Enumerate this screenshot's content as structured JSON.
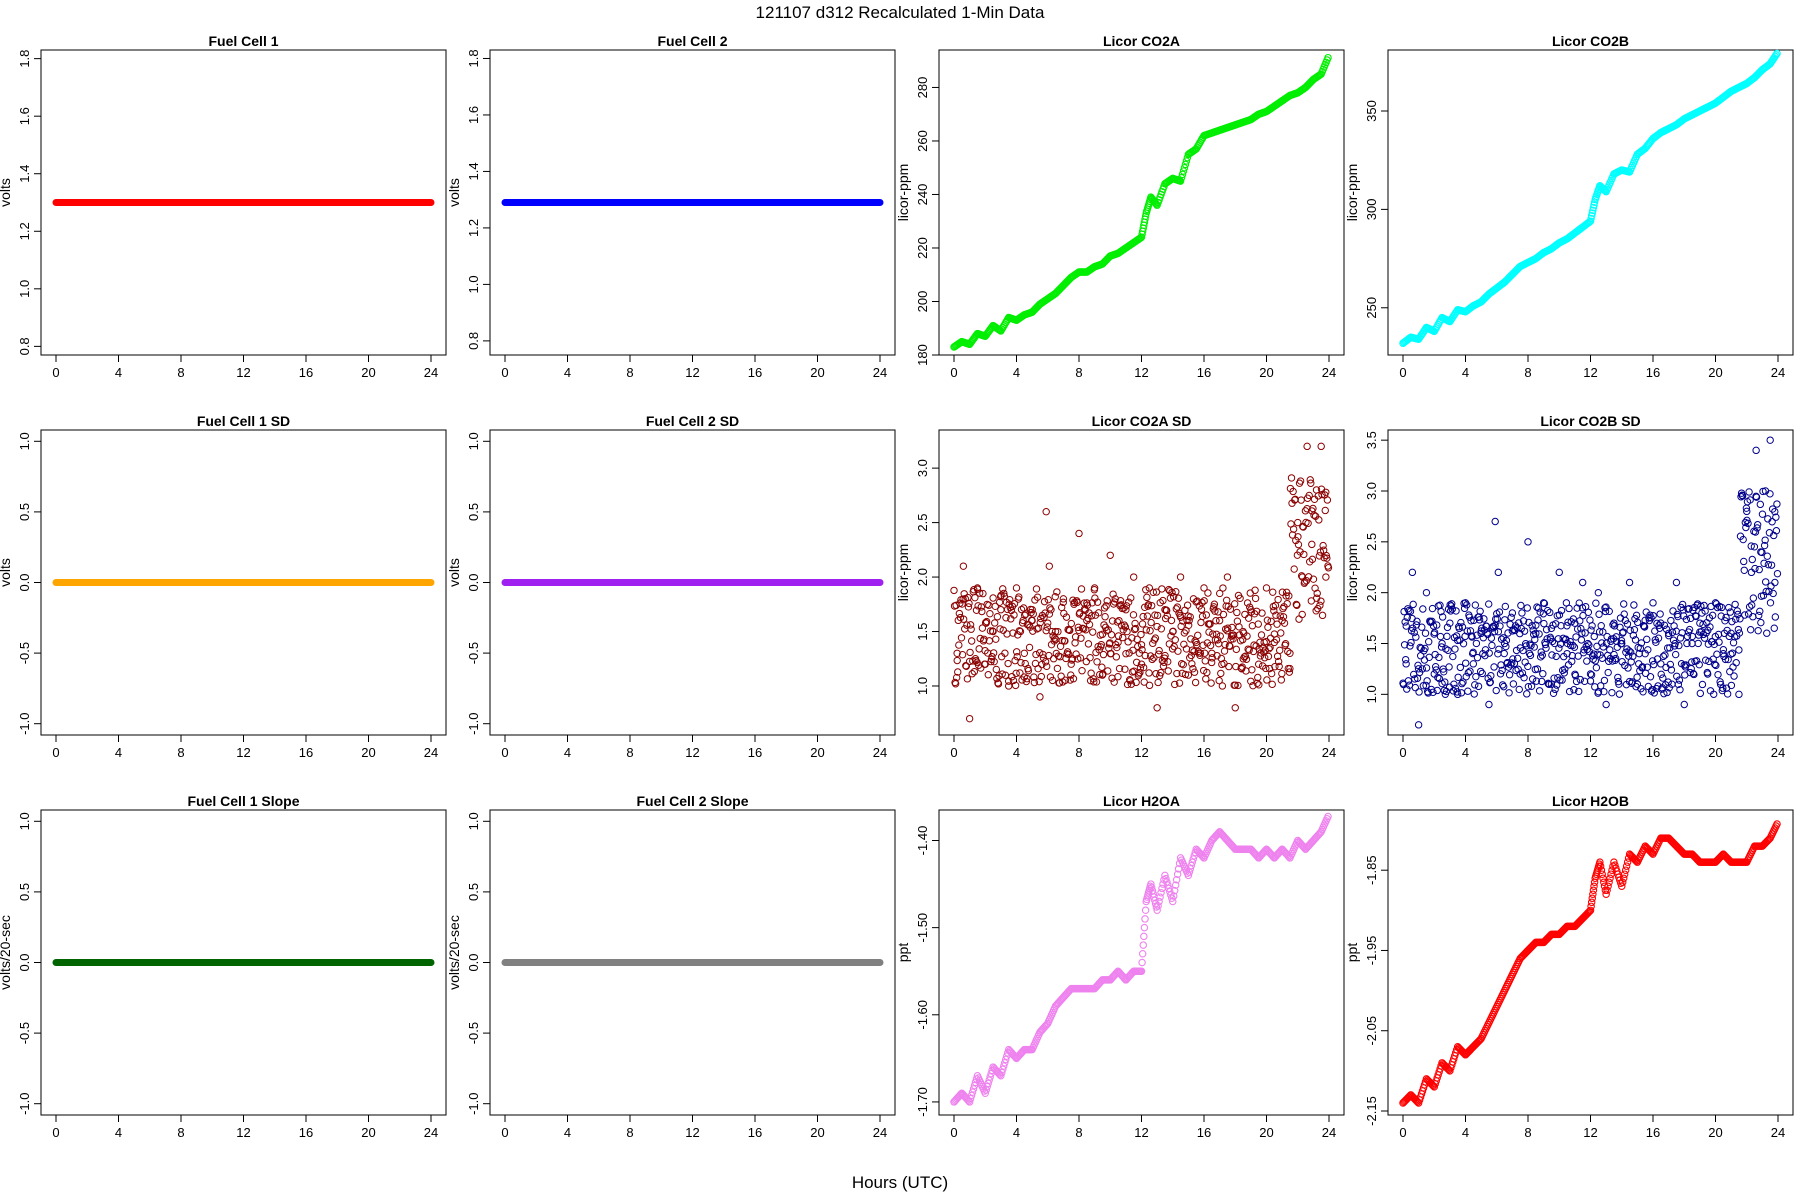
{
  "figure": {
    "title": "121107   d312   Recalculated 1-Min Data",
    "xlabel": "Hours (UTC)"
  },
  "chart_data": [
    {
      "id": "fuel-cell-1",
      "type": "scatter",
      "title": "Fuel Cell 1",
      "ylabel": "volts",
      "color": "#ff0000",
      "marker": "filled",
      "xlim": [
        0,
        24
      ],
      "ylim": [
        0.77,
        1.83
      ],
      "xticks": [
        0,
        4,
        8,
        12,
        16,
        20,
        24
      ],
      "yticks": [
        0.8,
        1.0,
        1.2,
        1.4,
        1.6,
        1.8
      ],
      "ytick_labels": [
        "0.8",
        "1.0",
        "1.2",
        "1.4",
        "1.6",
        "1.8"
      ],
      "series": [
        {
          "x": [
            0,
            24
          ],
          "y": [
            1.3,
            1.3
          ]
        }
      ]
    },
    {
      "id": "fuel-cell-2",
      "type": "scatter",
      "title": "Fuel Cell 2",
      "ylabel": "volts",
      "color": "#0000ff",
      "marker": "filled",
      "xlim": [
        0,
        24
      ],
      "ylim": [
        0.75,
        1.83
      ],
      "xticks": [
        0,
        4,
        8,
        12,
        16,
        20,
        24
      ],
      "yticks": [
        0.8,
        1.0,
        1.2,
        1.4,
        1.6,
        1.8
      ],
      "ytick_labels": [
        "0.8",
        "1.0",
        "1.2",
        "1.4",
        "1.6",
        "1.8"
      ],
      "series": [
        {
          "x": [
            0,
            24
          ],
          "y": [
            1.29,
            1.29
          ]
        }
      ]
    },
    {
      "id": "licor-co2a",
      "type": "scatter",
      "title": "Licor CO2A",
      "ylabel": "licor-ppm",
      "color": "#00ee00",
      "marker": "open",
      "xlim": [
        0,
        24
      ],
      "ylim": [
        180,
        294
      ],
      "xticks": [
        0,
        4,
        8,
        12,
        16,
        20,
        24
      ],
      "yticks": [
        180,
        200,
        220,
        240,
        260,
        280
      ],
      "ytick_labels": [
        "180",
        "200",
        "220",
        "240",
        "260",
        "280"
      ],
      "series": [
        {
          "x": [
            0,
            0.5,
            1,
            1.5,
            2,
            2.5,
            3,
            3.5,
            4,
            4.5,
            5,
            5.5,
            6,
            6.5,
            7,
            7.5,
            8,
            8.5,
            9,
            9.5,
            10,
            10.5,
            11,
            11.5,
            12,
            12.3,
            12.6,
            13,
            13.5,
            14,
            14.5,
            15,
            15.5,
            16,
            16.5,
            17,
            17.5,
            18,
            18.5,
            19,
            19.5,
            20,
            20.5,
            21,
            21.5,
            22,
            22.5,
            23,
            23.5,
            24
          ],
          "y": [
            183,
            185,
            184,
            188,
            187,
            191,
            189,
            194,
            193,
            195,
            196,
            199,
            201,
            203,
            206,
            209,
            211,
            211,
            213,
            214,
            217,
            218,
            220,
            222,
            224,
            233,
            239,
            236,
            244,
            246,
            245,
            255,
            257,
            262,
            263,
            264,
            265,
            266,
            267,
            268,
            270,
            271,
            273,
            275,
            277,
            278,
            280,
            283,
            285,
            292
          ]
        }
      ]
    },
    {
      "id": "licor-co2b",
      "type": "scatter",
      "title": "Licor CO2B",
      "ylabel": "licor-ppm",
      "color": "#00ffff",
      "marker": "open",
      "xlim": [
        0,
        24
      ],
      "ylim": [
        226,
        381
      ],
      "xticks": [
        0,
        4,
        8,
        12,
        16,
        20,
        24
      ],
      "yticks": [
        250,
        300,
        350
      ],
      "ytick_labels": [
        "250",
        "300",
        "350"
      ],
      "series": [
        {
          "x": [
            0,
            0.5,
            1,
            1.5,
            2,
            2.5,
            3,
            3.5,
            4,
            4.5,
            5,
            5.5,
            6,
            6.5,
            7,
            7.5,
            8,
            8.5,
            9,
            9.5,
            10,
            10.5,
            11,
            11.5,
            12,
            12.3,
            12.6,
            13,
            13.5,
            14,
            14.5,
            15,
            15.5,
            16,
            16.5,
            17,
            17.5,
            18,
            18.5,
            19,
            19.5,
            20,
            20.5,
            21,
            21.5,
            22,
            22.5,
            23,
            23.5,
            24
          ],
          "y": [
            232,
            235,
            234,
            240,
            238,
            245,
            243,
            249,
            248,
            251,
            253,
            257,
            260,
            263,
            267,
            271,
            273,
            275,
            278,
            280,
            283,
            285,
            288,
            291,
            294,
            305,
            312,
            309,
            318,
            320,
            319,
            328,
            331,
            336,
            339,
            341,
            343,
            346,
            348,
            350,
            352,
            354,
            357,
            360,
            362,
            364,
            367,
            371,
            374,
            380
          ]
        }
      ]
    },
    {
      "id": "fuel-cell-1-sd",
      "type": "scatter",
      "title": "Fuel Cell 1 SD",
      "ylabel": "volts",
      "color": "#ffa500",
      "marker": "filled",
      "xlim": [
        0,
        24
      ],
      "ylim": [
        -1.08,
        1.08
      ],
      "xticks": [
        0,
        4,
        8,
        12,
        16,
        20,
        24
      ],
      "yticks": [
        -1.0,
        -0.5,
        0.0,
        0.5,
        1.0
      ],
      "ytick_labels": [
        "-1.0",
        "-0.5",
        "0.0",
        "0.5",
        "1.0"
      ],
      "series": [
        {
          "x": [
            0,
            24
          ],
          "y": [
            0,
            0
          ]
        }
      ]
    },
    {
      "id": "fuel-cell-2-sd",
      "type": "scatter",
      "title": "Fuel Cell 2 SD",
      "ylabel": "volts",
      "color": "#a020f0",
      "marker": "filled",
      "xlim": [
        0,
        24
      ],
      "ylim": [
        -1.08,
        1.08
      ],
      "xticks": [
        0,
        4,
        8,
        12,
        16,
        20,
        24
      ],
      "yticks": [
        -1.0,
        -0.5,
        0.0,
        0.5,
        1.0
      ],
      "ytick_labels": [
        "-1.0",
        "-0.5",
        "0.0",
        "0.5",
        "1.0"
      ],
      "series": [
        {
          "x": [
            0,
            24
          ],
          "y": [
            0,
            0
          ]
        }
      ]
    },
    {
      "id": "licor-co2a-sd",
      "type": "scatter",
      "title": "Licor CO2A SD",
      "ylabel": "licor-ppm",
      "color": "#8b0000",
      "marker": "open",
      "xlim": [
        0,
        24
      ],
      "ylim": [
        0.55,
        3.35
      ],
      "xticks": [
        0,
        4,
        8,
        12,
        16,
        20,
        24
      ],
      "yticks": [
        1.0,
        1.5,
        2.0,
        2.5,
        3.0
      ],
      "ytick_labels": [
        "1.0",
        "1.5",
        "2.0",
        "2.5",
        "3.0"
      ],
      "series": [
        {
          "x": [
            0.2,
            0.6,
            1,
            1.5,
            2,
            2.5,
            3,
            3.5,
            4,
            4.5,
            5,
            5.5,
            5.9,
            6.1,
            6.5,
            7,
            7.5,
            8,
            8.5,
            9,
            9.5,
            10,
            10.5,
            11,
            11.5,
            12,
            12.5,
            13,
            13.5,
            14,
            14.5,
            15,
            15.5,
            16,
            16.5,
            17,
            17.5,
            18,
            18.5,
            19,
            19.5,
            20,
            20.5,
            21,
            21.5,
            22,
            22.3,
            22.6,
            22.9,
            23.2,
            23.5,
            23.8
          ],
          "y": [
            1.3,
            2.1,
            0.7,
            1.9,
            1.2,
            1.5,
            1.7,
            1.0,
            1.9,
            1.3,
            1.6,
            0.9,
            2.6,
            2.1,
            1.5,
            1.8,
            1.2,
            2.4,
            1.6,
            1.9,
            1.1,
            2.2,
            1.4,
            1.7,
            2.0,
            1.2,
            1.9,
            0.8,
            1.7,
            1.5,
            2.0,
            1.1,
            1.4,
            1.9,
            1.3,
            1.6,
            2.0,
            0.8,
            1.5,
            1.7,
            1.2,
            1.9,
            1.4,
            1.6,
            1.3,
            2.5,
            2.0,
            3.2,
            2.3,
            2.8,
            3.2,
            2.0
          ]
        }
      ]
    },
    {
      "id": "licor-co2b-sd",
      "type": "scatter",
      "title": "Licor CO2B SD",
      "ylabel": "licor-ppm",
      "color": "#00008b",
      "marker": "open",
      "xlim": [
        0,
        24
      ],
      "ylim": [
        0.6,
        3.6
      ],
      "xticks": [
        0,
        4,
        8,
        12,
        16,
        20,
        24
      ],
      "yticks": [
        1.0,
        1.5,
        2.0,
        2.5,
        3.0,
        3.5
      ],
      "ytick_labels": [
        "1.0",
        "1.5",
        "2.0",
        "2.5",
        "3.0",
        "3.5"
      ],
      "series": [
        {
          "x": [
            0.2,
            0.6,
            1,
            1.5,
            2,
            2.5,
            3,
            3.5,
            4,
            4.5,
            5,
            5.5,
            5.9,
            6.1,
            6.5,
            7,
            7.5,
            8,
            8.5,
            9,
            9.5,
            10,
            10.5,
            11,
            11.5,
            12,
            12.5,
            13,
            13.5,
            14,
            14.5,
            15,
            15.5,
            16,
            16.5,
            17,
            17.5,
            18,
            18.5,
            19,
            19.5,
            20,
            20.5,
            21,
            21.5,
            22,
            22.3,
            22.6,
            22.9,
            23.2,
            23.5,
            23.8
          ],
          "y": [
            1.3,
            2.2,
            0.7,
            2.0,
            1.2,
            1.5,
            1.7,
            1.0,
            1.9,
            1.3,
            1.6,
            0.9,
            2.7,
            2.2,
            1.5,
            1.8,
            1.2,
            2.5,
            1.6,
            1.9,
            1.1,
            2.2,
            1.4,
            1.7,
            2.1,
            1.2,
            2.0,
            0.9,
            1.7,
            1.5,
            2.1,
            1.1,
            1.4,
            1.9,
            1.3,
            1.6,
            2.1,
            0.9,
            1.5,
            1.7,
            1.2,
            1.9,
            1.4,
            1.6,
            1.0,
            2.8,
            2.2,
            3.4,
            2.4,
            3.0,
            3.5,
            2.1
          ]
        }
      ]
    },
    {
      "id": "fuel-cell-1-slope",
      "type": "scatter",
      "title": "Fuel Cell 1 Slope",
      "ylabel": "volts/20-sec",
      "color": "#006400",
      "marker": "filled",
      "xlim": [
        0,
        24
      ],
      "ylim": [
        -1.08,
        1.08
      ],
      "xticks": [
        0,
        4,
        8,
        12,
        16,
        20,
        24
      ],
      "yticks": [
        -1.0,
        -0.5,
        0.0,
        0.5,
        1.0
      ],
      "ytick_labels": [
        "-1.0",
        "-0.5",
        "0.0",
        "0.5",
        "1.0"
      ],
      "series": [
        {
          "x": [
            0,
            24
          ],
          "y": [
            0,
            0
          ]
        }
      ]
    },
    {
      "id": "fuel-cell-2-slope",
      "type": "scatter",
      "title": "Fuel Cell 2 Slope",
      "ylabel": "volts/20-sec",
      "color": "#808080",
      "marker": "filled",
      "xlim": [
        0,
        24
      ],
      "ylim": [
        -1.08,
        1.08
      ],
      "xticks": [
        0,
        4,
        8,
        12,
        16,
        20,
        24
      ],
      "yticks": [
        -1.0,
        -0.5,
        0.0,
        0.5,
        1.0
      ],
      "ytick_labels": [
        "-1.0",
        "-0.5",
        "0.0",
        "0.5",
        "1.0"
      ],
      "series": [
        {
          "x": [
            0,
            24
          ],
          "y": [
            0,
            0
          ]
        }
      ]
    },
    {
      "id": "licor-h2oa",
      "type": "scatter",
      "title": "Licor H2OA",
      "ylabel": "ppt",
      "color": "#ee82ee",
      "marker": "open",
      "xlim": [
        0,
        24
      ],
      "ylim": [
        -1.715,
        -1.365
      ],
      "xticks": [
        0,
        4,
        8,
        12,
        16,
        20,
        24
      ],
      "yticks": [
        -1.7,
        -1.6,
        -1.5,
        -1.4
      ],
      "ytick_labels": [
        "-1.70",
        "-1.60",
        "-1.50",
        "-1.40"
      ],
      "series": [
        {
          "x": [
            0,
            0.5,
            1,
            1.5,
            2,
            2.5,
            3,
            3.5,
            4,
            4.5,
            5,
            5.5,
            6,
            6.5,
            7,
            7.5,
            8,
            8.5,
            9,
            9.5,
            10,
            10.5,
            11,
            11.5,
            12,
            12.3,
            12.6,
            13,
            13.5,
            14,
            14.5,
            15,
            15.5,
            16,
            16.5,
            17,
            17.5,
            18,
            18.5,
            19,
            19.5,
            20,
            20.5,
            21,
            21.5,
            22,
            22.5,
            23,
            23.5,
            24
          ],
          "y": [
            -1.7,
            -1.69,
            -1.7,
            -1.67,
            -1.69,
            -1.66,
            -1.67,
            -1.64,
            -1.65,
            -1.64,
            -1.64,
            -1.62,
            -1.61,
            -1.59,
            -1.58,
            -1.57,
            -1.57,
            -1.57,
            -1.57,
            -1.56,
            -1.56,
            -1.55,
            -1.56,
            -1.55,
            -1.55,
            -1.47,
            -1.45,
            -1.48,
            -1.44,
            -1.47,
            -1.42,
            -1.44,
            -1.41,
            -1.42,
            -1.4,
            -1.39,
            -1.4,
            -1.41,
            -1.41,
            -1.41,
            -1.42,
            -1.41,
            -1.42,
            -1.41,
            -1.42,
            -1.4,
            -1.41,
            -1.4,
            -1.39,
            -1.37
          ]
        }
      ]
    },
    {
      "id": "licor-h2ob",
      "type": "scatter",
      "title": "Licor H2OB",
      "ylabel": "ppt",
      "color": "#ff0000",
      "marker": "open",
      "xlim": [
        0,
        24
      ],
      "ylim": [
        -2.155,
        -1.775
      ],
      "xticks": [
        0,
        4,
        8,
        12,
        16,
        20,
        24
      ],
      "yticks": [
        -2.15,
        -2.05,
        -1.95,
        -1.85
      ],
      "ytick_labels": [
        "-2.15",
        "-2.05",
        "-1.95",
        "-1.85"
      ],
      "series": [
        {
          "x": [
            0,
            0.5,
            1,
            1.5,
            2,
            2.5,
            3,
            3.5,
            4,
            4.5,
            5,
            5.5,
            6,
            6.5,
            7,
            7.5,
            8,
            8.5,
            9,
            9.5,
            10,
            10.5,
            11,
            11.5,
            12,
            12.3,
            12.6,
            13,
            13.5,
            14,
            14.5,
            15,
            15.5,
            16,
            16.5,
            17,
            17.5,
            18,
            18.5,
            19,
            19.5,
            20,
            20.5,
            21,
            21.5,
            22,
            22.5,
            23,
            23.5,
            24
          ],
          "y": [
            -2.14,
            -2.13,
            -2.14,
            -2.11,
            -2.12,
            -2.09,
            -2.1,
            -2.07,
            -2.08,
            -2.07,
            -2.06,
            -2.04,
            -2.02,
            -2.0,
            -1.98,
            -1.96,
            -1.95,
            -1.94,
            -1.94,
            -1.93,
            -1.93,
            -1.92,
            -1.92,
            -1.91,
            -1.9,
            -1.86,
            -1.84,
            -1.88,
            -1.84,
            -1.87,
            -1.83,
            -1.84,
            -1.82,
            -1.83,
            -1.81,
            -1.81,
            -1.82,
            -1.83,
            -1.83,
            -1.84,
            -1.84,
            -1.84,
            -1.83,
            -1.84,
            -1.84,
            -1.84,
            -1.82,
            -1.82,
            -1.81,
            -1.79
          ]
        }
      ]
    }
  ]
}
